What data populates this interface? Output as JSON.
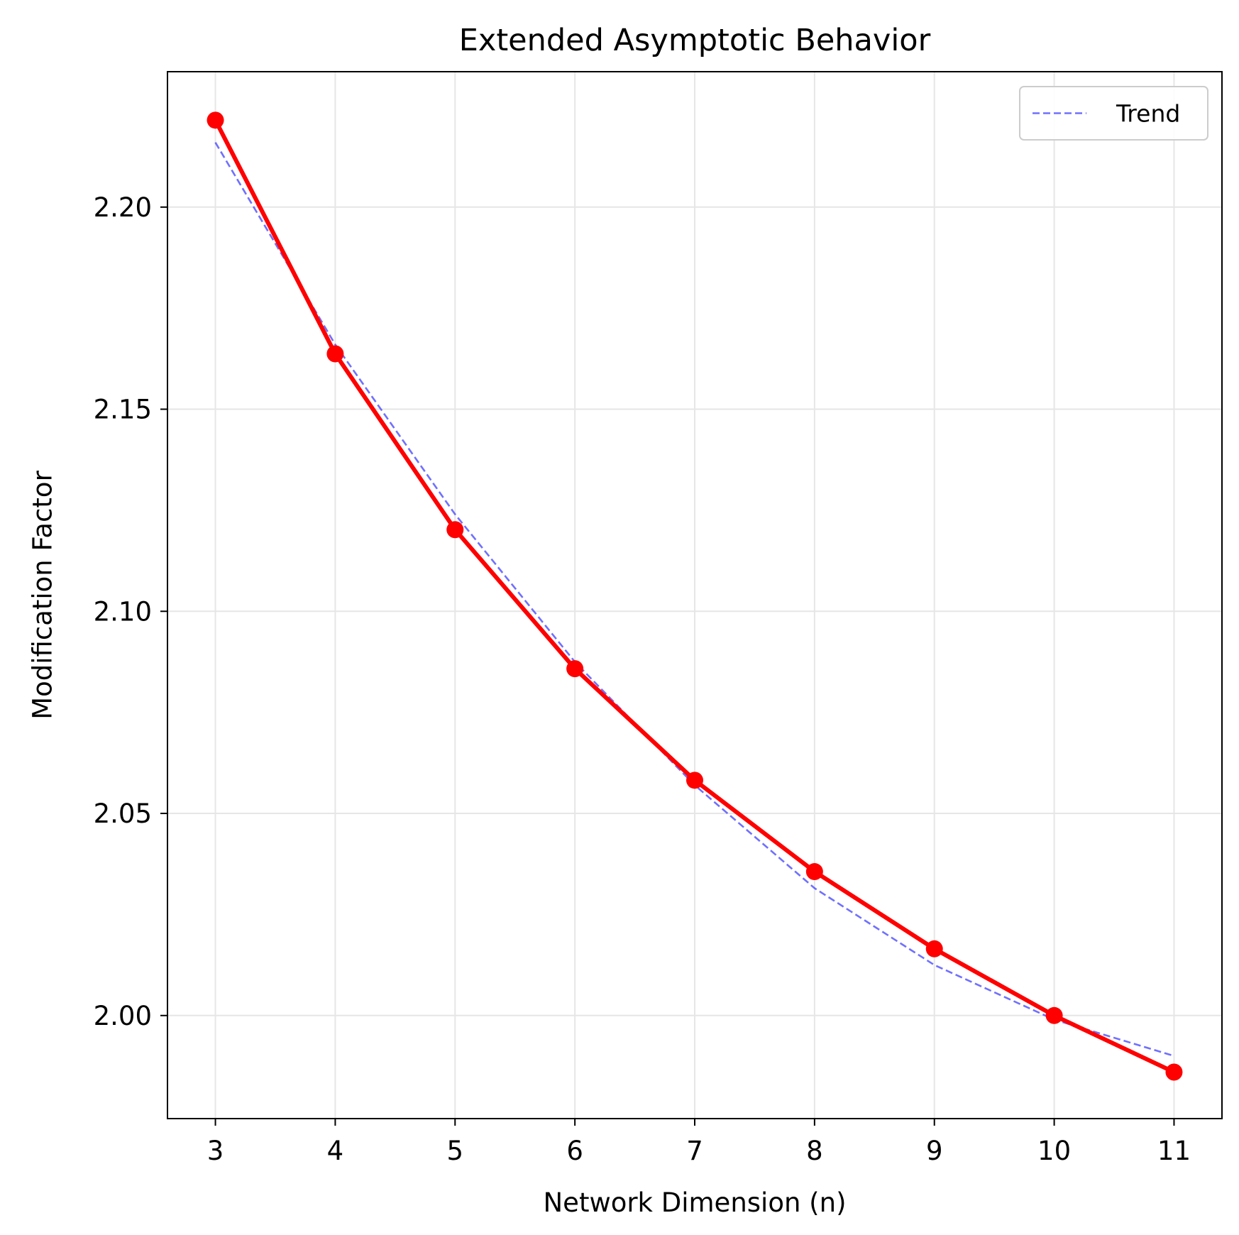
{
  "chart_data": {
    "type": "line",
    "title": "Extended Asymptotic Behavior",
    "xlabel": "Network Dimension (n)",
    "ylabel": "Modification Factor",
    "xlim": [
      2.6,
      11.4
    ],
    "ylim": [
      1.9745,
      2.2335
    ],
    "x_ticks": [
      3,
      4,
      5,
      6,
      7,
      8,
      9,
      10,
      11
    ],
    "y_ticks": [
      2.0,
      2.05,
      2.1,
      2.15,
      2.2
    ],
    "y_tick_labels": [
      "2.00",
      "2.05",
      "2.10",
      "2.15",
      "2.20"
    ],
    "grid": true,
    "legend_position": "top-right",
    "x": [
      3,
      4,
      5,
      6,
      7,
      8,
      9,
      10,
      11
    ],
    "series": [
      {
        "values": [
          2.2215,
          2.1637,
          2.1202,
          2.0858,
          2.0582,
          2.0356,
          2.0165,
          2.0,
          1.986
        ],
        "color": "#ff0000",
        "style": "solid",
        "marker": "circle"
      },
      {
        "name": "Trend",
        "values": [
          2.216,
          2.166,
          2.124,
          2.0875,
          2.057,
          2.0315,
          2.0125,
          1.999,
          1.99
        ],
        "color": "#4040ff",
        "style": "dashed",
        "marker": "none"
      }
    ]
  }
}
